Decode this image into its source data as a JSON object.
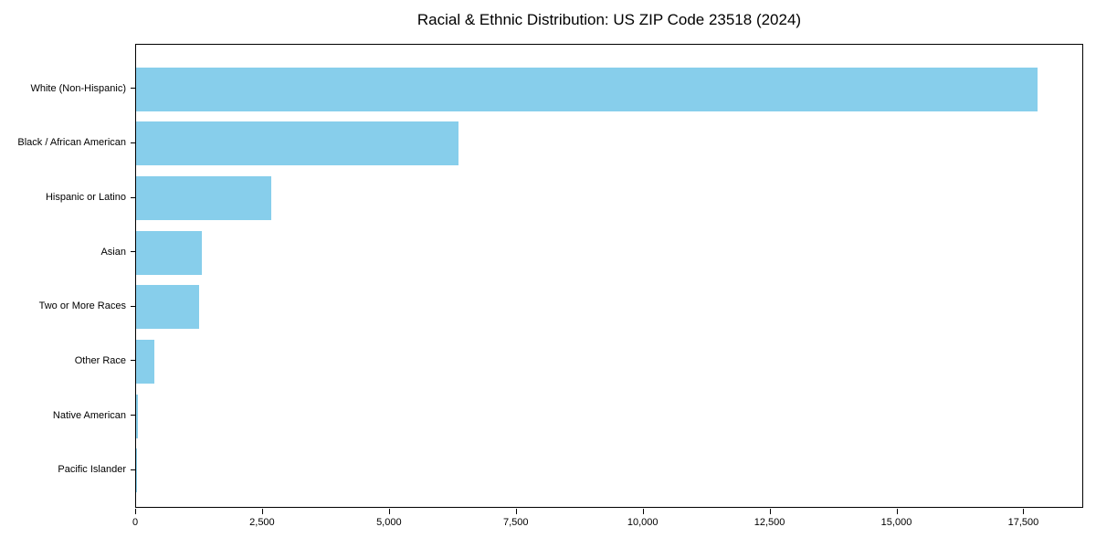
{
  "title": "Racial & Ethnic Distribution: US ZIP Code 23518 (2024)",
  "colors": {
    "bar": "#87CEEB",
    "axis": "#000000",
    "text": "#000000",
    "background": "#ffffff"
  },
  "chart_data": {
    "type": "bar",
    "orientation": "horizontal",
    "title": "Racial & Ethnic Distribution: US ZIP Code 23518 (2024)",
    "categories": [
      "White (Non-Hispanic)",
      "Black / African American",
      "Hispanic or Latino",
      "Asian",
      "Two or More Races",
      "Other Race",
      "Native American",
      "Pacific Islander"
    ],
    "values": [
      17790,
      6370,
      2660,
      1300,
      1240,
      360,
      30,
      10
    ],
    "xlabel": "",
    "ylabel": "",
    "xlim": [
      0,
      18680
    ],
    "x_ticks": [
      0,
      2500,
      5000,
      7500,
      10000,
      12500,
      15000,
      17500
    ],
    "x_tick_labels": [
      "0",
      "2,500",
      "5,000",
      "7,500",
      "10,000",
      "12,500",
      "15,000",
      "17,500"
    ],
    "bar_color": "#87CEEB",
    "grid": false,
    "legend": "none"
  }
}
